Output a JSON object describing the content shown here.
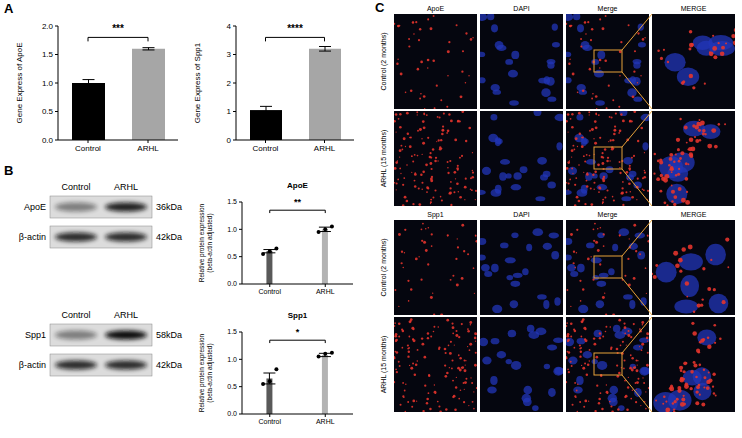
{
  "panel_labels": [
    "A",
    "B",
    "C"
  ],
  "chart_data": [
    {
      "type": "bar",
      "y_label": "Gene Express of ApoE",
      "categories": [
        "Control",
        "ARHL"
      ],
      "values": [
        1.0,
        1.6
      ],
      "errors": [
        0.06,
        0.02
      ],
      "colors": [
        "#000000",
        "#a6a6a6"
      ],
      "significance": "***",
      "ylim": [
        0,
        2
      ],
      "yticks": [
        {
          "value": 0,
          "label": "0.0"
        },
        0.5,
        {
          "value": 1,
          "label": "1.0"
        },
        1.5,
        {
          "value": 2,
          "label": "2.0"
        }
      ]
    },
    {
      "type": "bar",
      "y_label": "Gene Express of Spp1",
      "categories": [
        "Control",
        "ARHL"
      ],
      "values": [
        1.05,
        3.2
      ],
      "errors": [
        0.13,
        0.08
      ],
      "colors": [
        "#000000",
        "#a6a6a6"
      ],
      "significance": "****",
      "ylim": [
        0,
        4
      ],
      "yticks": [
        0,
        1,
        2,
        3,
        4
      ]
    },
    {
      "type": "bar",
      "title": "ApoE",
      "y_label": "Relative protein expression (beta-actin adjusted)",
      "categories": [
        "Control",
        "ARHL"
      ],
      "values": [
        0.6,
        1.0
      ],
      "errors": [
        0.03,
        0.04
      ],
      "points": [
        [
          0.55,
          0.6,
          0.65
        ],
        [
          0.95,
          1.0,
          1.05
        ]
      ],
      "colors": [
        "#595959",
        "#b3b3b3"
      ],
      "significance": "**",
      "ylim": [
        0,
        1.5
      ],
      "yticks": [
        {
          "value": 0,
          "label": "0.0"
        },
        0.5,
        {
          "value": 1,
          "label": "1.0"
        },
        1.5
      ]
    },
    {
      "type": "bar",
      "title": "Spp1",
      "y_label": "Relative protein expression (beta-actin adjusted)",
      "categories": [
        "Control",
        "ARHL"
      ],
      "values": [
        0.65,
        1.08
      ],
      "errors": [
        0.1,
        0.03
      ],
      "points": [
        [
          0.55,
          0.6,
          0.82
        ],
        [
          1.05,
          1.1,
          1.12
        ]
      ],
      "colors": [
        "#595959",
        "#b3b3b3"
      ],
      "significance": "*",
      "ylim": [
        0,
        1.5
      ],
      "yticks": [
        {
          "value": 0,
          "label": "0.0"
        },
        0.5,
        {
          "value": 1,
          "label": "1.0"
        },
        1.5
      ]
    }
  ],
  "blots": [
    {
      "lanes": [
        "Control",
        "ARHL"
      ],
      "target": "ApoE",
      "target_kda": "36kDa",
      "loading": "β-actin",
      "loading_kda": "42kDa"
    },
    {
      "lanes": [
        "Control",
        "ARHL"
      ],
      "target": "Spp1",
      "target_kda": "58kDa",
      "loading": "β-actin",
      "loading_kda": "42kDa"
    }
  ],
  "images": {
    "groups": [
      {
        "columns": [
          "ApoE",
          "DAPI",
          "Merge",
          "MERGE"
        ],
        "rows": [
          "Control (2 months)",
          "ARHL (15 months)"
        ]
      },
      {
        "columns": [
          "Spp1",
          "DAPI",
          "Merge",
          "MERGE"
        ],
        "rows": [
          "Control (2 months)",
          "ARHL (15 months)"
        ]
      }
    ]
  }
}
